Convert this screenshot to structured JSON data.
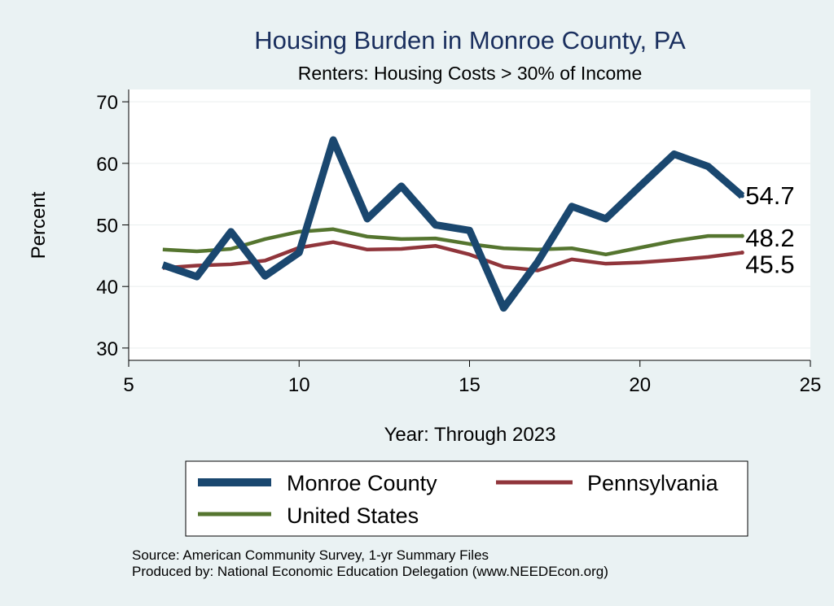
{
  "chart_data": {
    "type": "line",
    "title": "Housing Burden in Monroe County, PA",
    "subtitle": "Renters: Housing Costs > 30% of Income",
    "xlabel": "Year: Through 2023",
    "ylabel": "Percent",
    "xlim": [
      5,
      25
    ],
    "ylim": [
      28,
      72
    ],
    "xticks": [
      5,
      10,
      15,
      20,
      25
    ],
    "yticks": [
      30,
      40,
      50,
      60,
      70
    ],
    "grid": true,
    "x": [
      6,
      7,
      8,
      9,
      10,
      11,
      12,
      13,
      14,
      15,
      16,
      17,
      18,
      19,
      20,
      21,
      22,
      23
    ],
    "series": [
      {
        "name": "Monroe County",
        "color": "#1a476f",
        "values": [
          43.5,
          41.6,
          48.9,
          41.7,
          45.5,
          63.8,
          51.0,
          56.3,
          50.0,
          49.1,
          36.5,
          44.0,
          53.0,
          51.0,
          56.3,
          61.5,
          59.5,
          54.7
        ],
        "end_label": "54.7"
      },
      {
        "name": "Pennsylvania",
        "color": "#90353b",
        "values": [
          43.0,
          43.4,
          43.6,
          44.2,
          46.3,
          47.2,
          46.0,
          46.1,
          46.6,
          45.2,
          43.2,
          42.6,
          44.4,
          43.7,
          43.9,
          44.3,
          44.8,
          45.5
        ],
        "end_label": "45.5"
      },
      {
        "name": "United States",
        "color": "#55752f",
        "values": [
          46.0,
          45.7,
          46.1,
          47.7,
          48.9,
          49.3,
          48.1,
          47.7,
          47.8,
          46.9,
          46.2,
          46.0,
          46.2,
          45.2,
          46.3,
          47.4,
          48.2,
          48.2
        ],
        "end_label": "48.2"
      }
    ],
    "legend": {
      "position": "bottom",
      "items": [
        "Monroe County",
        "Pennsylvania",
        "United States"
      ]
    },
    "notes": [
      "Source: American Community Survey, 1-yr Summary Files",
      "Produced by: National Economic Education Delegation (www.NEEDEcon.org)"
    ]
  }
}
